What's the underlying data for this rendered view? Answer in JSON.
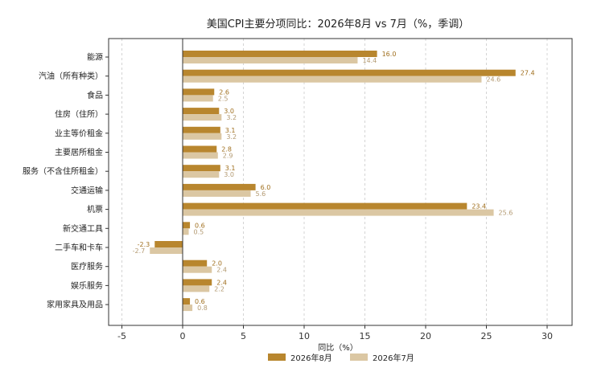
{
  "chart_data": {
    "type": "bar",
    "orientation": "horizontal",
    "title": "美国CPI主要分项同比：2026年8月 vs 7月（%，季调）",
    "xlabel": "同比（%）",
    "ylabel": "",
    "xlim": [
      -5,
      31
    ],
    "xticks": [
      -5,
      0,
      5,
      10,
      15,
      20,
      25,
      30
    ],
    "grid": "vertical-dashed",
    "legend_position": "bottom-center",
    "categories": [
      "能源",
      "汽油（所有种类）",
      "食品",
      "住房（住所）",
      "业主等价租金",
      "主要居所租金",
      "服务（不含住所租金）",
      "交通运输",
      "机票",
      "新交通工具",
      "二手车和卡车",
      "医疗服务",
      "娱乐服务",
      "家用家具及用品"
    ],
    "series": [
      {
        "name": "2026年8月",
        "color": "#b8862e",
        "label_color": "#a06f1e",
        "values": [
          16.0,
          27.4,
          2.6,
          3.0,
          3.1,
          2.8,
          3.1,
          6.0,
          23.4,
          0.6,
          -2.3,
          2.0,
          2.4,
          0.6
        ]
      },
      {
        "name": "2026年7月",
        "color": "#dbc7a3",
        "label_color": "#b39a72",
        "values": [
          14.4,
          24.6,
          2.5,
          3.2,
          3.2,
          2.9,
          3.0,
          5.6,
          25.6,
          0.5,
          -2.7,
          2.4,
          2.2,
          0.8
        ]
      }
    ]
  }
}
